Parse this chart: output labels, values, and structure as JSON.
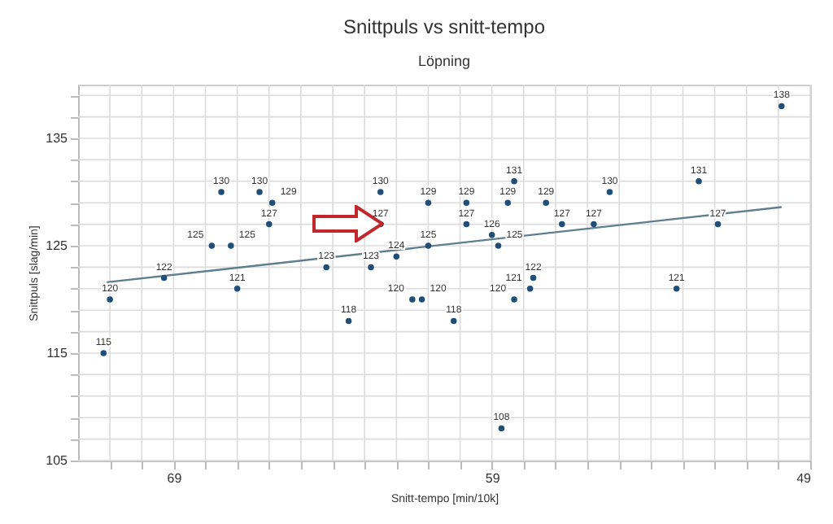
{
  "chart_data": {
    "type": "scatter",
    "title": "Snittpuls vs snitt-tempo",
    "subtitle": "Löpning",
    "xlabel": "Snitt-tempo [min/10k]",
    "ylabel": "Snittpuls [slag/min]",
    "xlim": [
      72,
      49
    ],
    "ylim": [
      105,
      140
    ],
    "xticks": [
      {
        "value": 71,
        "label": null
      },
      {
        "value": 70,
        "label": null
      },
      69,
      {
        "value": 68,
        "label": null
      },
      {
        "value": 67,
        "label": null
      },
      {
        "value": 66,
        "label": null
      },
      {
        "value": 65,
        "label": null
      },
      {
        "value": 64,
        "label": null
      },
      {
        "value": 63,
        "label": null
      },
      {
        "value": 62,
        "label": null
      },
      {
        "value": 61,
        "label": null
      },
      {
        "value": 60,
        "label": null
      },
      59,
      {
        "value": 58,
        "label": null
      },
      {
        "value": 57,
        "label": null
      },
      {
        "value": 56,
        "label": null
      },
      {
        "value": 55,
        "label": null
      },
      {
        "value": 54,
        "label": null
      },
      {
        "value": 53,
        "label": null
      },
      {
        "value": 52,
        "label": null
      },
      {
        "value": 51,
        "label": null
      },
      {
        "value": 50,
        "label": null
      },
      49
    ],
    "yticks": [
      105,
      {
        "value": 107,
        "label": null
      },
      {
        "value": 109,
        "label": null
      },
      {
        "value": 111,
        "label": null
      },
      {
        "value": 113,
        "label": null
      },
      115,
      {
        "value": 117,
        "label": null
      },
      {
        "value": 119,
        "label": null
      },
      {
        "value": 121,
        "label": null
      },
      {
        "value": 123,
        "label": null
      },
      125,
      {
        "value": 127,
        "label": null
      },
      {
        "value": 129,
        "label": null
      },
      {
        "value": 131,
        "label": null
      },
      {
        "value": 133,
        "label": null
      },
      135,
      {
        "value": 137,
        "label": null
      },
      {
        "value": 139,
        "label": null
      }
    ],
    "grid": true,
    "series": [
      {
        "type": "scatter",
        "marker": "circle",
        "color": "#1f4e79",
        "x": [
          71.2,
          71.0,
          69.3,
          67.8,
          67.5,
          67.2,
          67.0,
          66.3,
          66.0,
          65.9,
          64.2,
          63.5,
          62.8,
          62.5,
          62.5,
          62.0,
          61.5,
          61.2,
          61.0,
          61.0,
          60.2,
          59.8,
          59.8,
          59.0,
          58.8,
          58.7,
          58.5,
          58.3,
          58.3,
          57.8,
          57.7,
          57.3,
          56.8,
          55.8,
          55.3,
          53.2,
          52.5,
          51.9,
          49.9
        ],
        "values": [
          115,
          120,
          122,
          125,
          130,
          125,
          121,
          130,
          127,
          129,
          123,
          118,
          123,
          130,
          127,
          124,
          120,
          120,
          129,
          125,
          118,
          129,
          127,
          126,
          125,
          108,
          129,
          131,
          120,
          121,
          122,
          129,
          127,
          127,
          130,
          121,
          131,
          127,
          138
        ],
        "value_labels": [
          "115",
          "120",
          "122",
          "125",
          "130",
          "125",
          "121",
          "130",
          "127",
          "129",
          "123",
          "118",
          "123",
          "130",
          "127",
          "124",
          "120",
          "120",
          "129",
          "125",
          "118",
          "129",
          "127",
          "126",
          "125",
          "108",
          "129",
          "131",
          "120",
          "121",
          "122",
          "129",
          "127",
          "127",
          "130",
          "121",
          "131",
          "127",
          "138"
        ]
      },
      {
        "type": "line",
        "color": "#5f7f8f",
        "x": [
          71.1,
          49.9
        ],
        "values": [
          121.6,
          128.6
        ]
      }
    ]
  }
}
